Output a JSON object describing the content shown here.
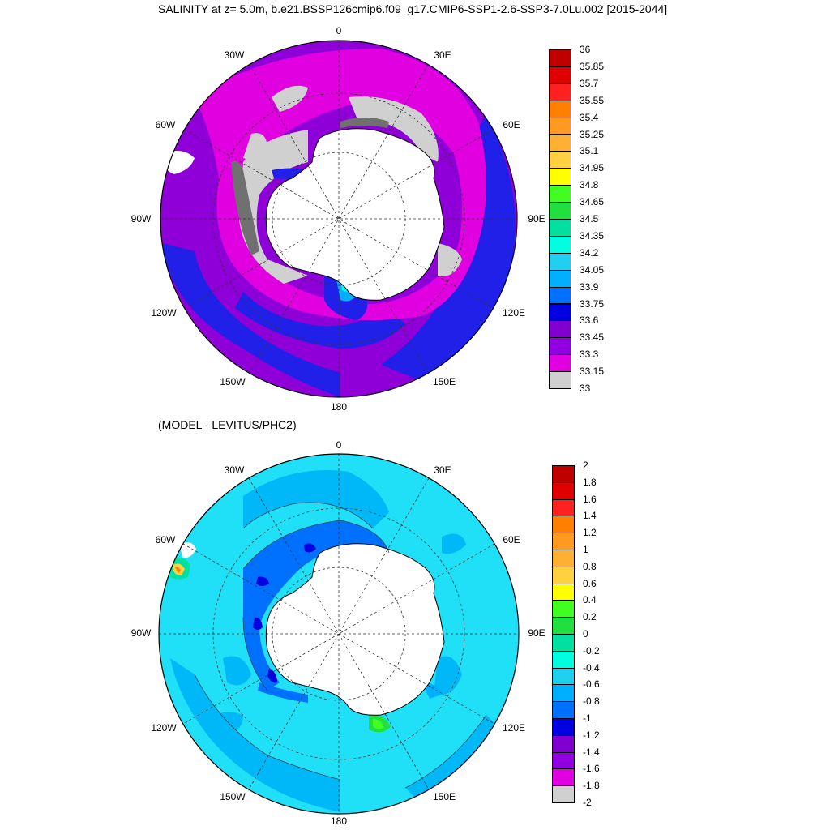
{
  "title": "SALINITY at z=   5.0m, b.e21.BSSP126cmip6.f09_g17.CMIP6-SSP1-2.6-SSP3-7.0Lu.002 [2015-2044]",
  "panels": [
    {
      "subtitle": "",
      "longitude_labels": [
        "0",
        "30E",
        "60E",
        "90E",
        "120E",
        "150E",
        "180",
        "150W",
        "120W",
        "90W",
        "60W",
        "30W"
      ],
      "colorbar": {
        "labels": [
          "36",
          "35.85",
          "35.7",
          "35.55",
          "35.4",
          "35.25",
          "35.1",
          "34.95",
          "34.8",
          "34.65",
          "34.5",
          "34.35",
          "34.2",
          "34.05",
          "33.9",
          "33.75",
          "33.6",
          "33.45",
          "33.3",
          "33.15",
          "33"
        ],
        "colors": [
          "#c00000",
          "#e00000",
          "#ff2020",
          "#ff8000",
          "#ff9a20",
          "#ffb030",
          "#ffd040",
          "#ffff00",
          "#40ff20",
          "#20e040",
          "#00e0a0",
          "#00ffe0",
          "#20d0f0",
          "#00b0ff",
          "#0070ff",
          "#0000e0",
          "#8000d0",
          "#9000e0",
          "#e000e0",
          "#d0d0d0",
          "#707070"
        ]
      }
    },
    {
      "subtitle": "(MODEL - LEVITUS/PHC2)",
      "longitude_labels": [
        "0",
        "30E",
        "60E",
        "90E",
        "120E",
        "150E",
        "180",
        "150W",
        "120W",
        "90W",
        "60W",
        "30W"
      ],
      "colorbar": {
        "labels": [
          "2",
          "1.8",
          "1.6",
          "1.4",
          "1.2",
          "1",
          "0.8",
          "0.6",
          "0.4",
          "0.2",
          "0",
          "-0.2",
          "-0.4",
          "-0.6",
          "-0.8",
          "-1",
          "-1.2",
          "-1.4",
          "-1.6",
          "-1.8",
          "-2"
        ],
        "colors": [
          "#c00000",
          "#e00000",
          "#ff2020",
          "#ff8000",
          "#ff9a20",
          "#ffb030",
          "#ffd040",
          "#ffff00",
          "#40ff20",
          "#20e040",
          "#00e0a0",
          "#00ffe0",
          "#20d0f0",
          "#00b0ff",
          "#0070ff",
          "#0000e0",
          "#8000d0",
          "#9000e0",
          "#e000e0",
          "#d0d0d0",
          "#707070"
        ]
      }
    }
  ]
}
